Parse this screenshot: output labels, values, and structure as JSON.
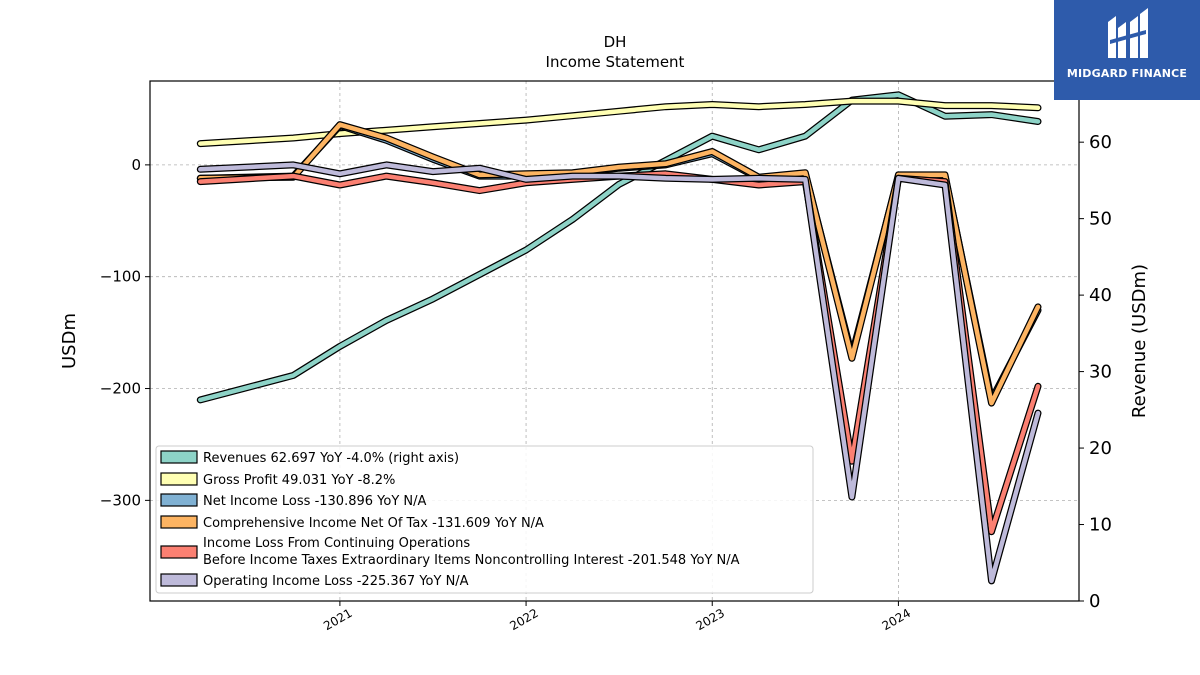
{
  "brand": {
    "name": "MIDGARD FINANCE",
    "bg_color": "#2e5bab"
  },
  "chart_data": {
    "type": "line",
    "title": "DH",
    "subtitle": "Income Statement",
    "ylabel": "USDm",
    "y2label": "Revenue (USDm)",
    "ylim": [
      -390,
      75
    ],
    "y2lim": [
      0,
      68
    ],
    "yticks": [
      0,
      -100,
      -200,
      -300
    ],
    "y2ticks": [
      0,
      10,
      20,
      30,
      40,
      50,
      60
    ],
    "xticks": [
      "2021",
      "2022",
      "2023",
      "2024"
    ],
    "grid": true,
    "legend_position": "lower-left",
    "x": [
      "2020-04",
      "2020-10",
      "2021-01",
      "2021-04",
      "2021-07",
      "2021-10",
      "2022-01",
      "2022-04",
      "2022-07",
      "2022-10",
      "2023-01",
      "2023-04",
      "2023-07",
      "2023-10",
      "2024-01",
      "2024-04",
      "2024-07",
      "2024-10"
    ],
    "series": [
      {
        "name": "Revenues",
        "legend_label": "Revenues  62.697 YoY -4.0% (right axis)",
        "axis": "right",
        "color": "#8dd3c7",
        "values": [
          26.3,
          29.5,
          33.3,
          36.7,
          39.5,
          42.7,
          45.9,
          49.9,
          54.5,
          57.6,
          60.8,
          59.0,
          60.8,
          65.5,
          66.2,
          63.4,
          63.6,
          62.7
        ]
      },
      {
        "name": "Gross Profit",
        "legend_label": "Gross Profit  49.031 YoY -8.2%",
        "axis": "left",
        "color": "#ffffb3",
        "values": [
          19,
          24,
          28,
          31,
          34,
          37,
          40,
          44,
          48,
          52,
          54,
          52,
          54,
          57,
          57,
          53,
          53,
          51
        ]
      },
      {
        "name": "Net Income Loss",
        "legend_label": "Net Income Loss  -130.896 YoY N/A",
        "axis": "left",
        "color": "#80b1d3",
        "values": [
          -12,
          -10,
          35,
          22,
          5,
          -10,
          -10,
          -8,
          -3,
          0,
          10,
          -12,
          -8,
          -170,
          -10,
          -10,
          -210,
          -130
        ]
      },
      {
        "name": "Comprehensive Income Net Of Tax",
        "legend_label": "Comprehensive Income Net Of Tax  -131.609 YoY N/A",
        "axis": "left",
        "color": "#fdb462",
        "values": [
          -12,
          -11,
          36,
          24,
          7,
          -9,
          -8,
          -7,
          -2,
          1,
          12,
          -11,
          -7,
          -173,
          -9,
          -9,
          -213,
          -127
        ]
      },
      {
        "name": "Income Loss From Continuing Operations Before Income Taxes Extraordinary Items Noncontrolling Interest",
        "legend_label_line1": "Income Loss From Continuing Operations",
        "legend_label_line2": "Before Income Taxes Extraordinary Items Noncontrolling Interest  -201.548 YoY N/A",
        "axis": "left",
        "color": "#fb8072",
        "values": [
          -15,
          -10,
          -18,
          -10,
          -16,
          -23,
          -16,
          -13,
          -10,
          -8,
          -13,
          -18,
          -15,
          -265,
          -12,
          -15,
          -328,
          -198
        ]
      },
      {
        "name": "Operating Income Loss",
        "legend_label": "Operating Income Loss  -225.367 YoY N/A",
        "axis": "left",
        "color": "#bebada",
        "values": [
          -4,
          0,
          -8,
          0,
          -6,
          -3,
          -13,
          -10,
          -10,
          -12,
          -13,
          -12,
          -13,
          -297,
          -12,
          -18,
          -372,
          -222
        ]
      }
    ]
  }
}
